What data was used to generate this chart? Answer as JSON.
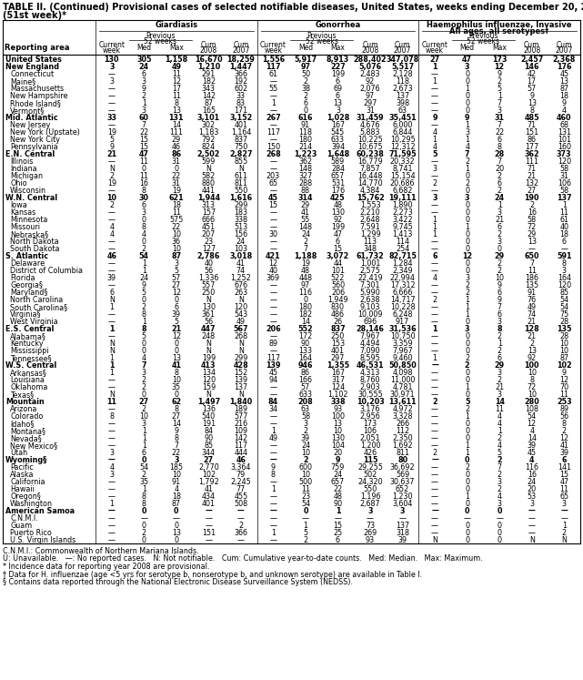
{
  "title_line1": "TABLE II. (Continued) Provisional cases of selected notifiable diseases, United States, weeks ending December 20, 2008, and December 22, 2007",
  "title_line2": "(51st week)*",
  "rows": [
    [
      "United States",
      "130",
      "305",
      "1,158",
      "16,670",
      "18,259",
      "1,556",
      "5,917",
      "8,913",
      "288,402",
      "347,078",
      "27",
      "47",
      "173",
      "2,457",
      "2,368"
    ],
    [
      "New England",
      "3",
      "24",
      "49",
      "1,210",
      "1,447",
      "117",
      "97",
      "227",
      "5,076",
      "5,517",
      "1",
      "3",
      "12",
      "146",
      "176"
    ],
    [
      "Connecticut",
      "—",
      "6",
      "11",
      "291",
      "366",
      "61",
      "50",
      "199",
      "2,483",
      "2,128",
      "—",
      "0",
      "9",
      "42",
      "45"
    ],
    [
      "Maine§",
      "3",
      "3",
      "12",
      "182",
      "192",
      "—",
      "2",
      "6",
      "92",
      "118",
      "1",
      "0",
      "2",
      "17",
      "13"
    ],
    [
      "Massachusetts",
      "—",
      "9",
      "17",
      "343",
      "602",
      "55",
      "38",
      "69",
      "2,076",
      "2,673",
      "—",
      "1",
      "5",
      "57",
      "87"
    ],
    [
      "New Hampshire",
      "—",
      "2",
      "11",
      "142",
      "33",
      "—",
      "2",
      "6",
      "97",
      "137",
      "—",
      "0",
      "1",
      "9",
      "18"
    ],
    [
      "Rhode Island§",
      "—",
      "1",
      "8",
      "87",
      "83",
      "1",
      "6",
      "13",
      "297",
      "398",
      "—",
      "0",
      "7",
      "13",
      "9"
    ],
    [
      "Vermont§",
      "—",
      "3",
      "13",
      "165",
      "171",
      "—",
      "0",
      "3",
      "31",
      "63",
      "—",
      "0",
      "3",
      "8",
      "4"
    ],
    [
      "Mid. Atlantic",
      "33",
      "60",
      "131",
      "3,101",
      "3,152",
      "267",
      "616",
      "1,028",
      "31,459",
      "35,451",
      "9",
      "9",
      "31",
      "485",
      "460"
    ],
    [
      "New Jersey",
      "—",
      "7",
      "14",
      "302",
      "401",
      "—",
      "91",
      "167",
      "4,676",
      "6,000",
      "—",
      "1",
      "7",
      "71",
      "68"
    ],
    [
      "New York (Upstate)",
      "19",
      "22",
      "111",
      "1,183",
      "1,164",
      "117",
      "118",
      "545",
      "5,883",
      "6,844",
      "4",
      "3",
      "22",
      "151",
      "131"
    ],
    [
      "New York City",
      "5",
      "15",
      "29",
      "792",
      "837",
      "—",
      "180",
      "633",
      "10,225",
      "10,295",
      "1",
      "1",
      "6",
      "86",
      "101"
    ],
    [
      "Pennsylvania",
      "9",
      "15",
      "46",
      "824",
      "750",
      "150",
      "214",
      "394",
      "10,675",
      "12,312",
      "4",
      "4",
      "8",
      "177",
      "160"
    ],
    [
      "E.N. Central",
      "21",
      "47",
      "86",
      "2,502",
      "2,827",
      "268",
      "1,223",
      "1,648",
      "60,238",
      "71,595",
      "5",
      "7",
      "28",
      "362",
      "373"
    ],
    [
      "Illinois",
      "—",
      "11",
      "31",
      "599",
      "855",
      "—",
      "362",
      "589",
      "16,779",
      "20,332",
      "—",
      "2",
      "7",
      "111",
      "120"
    ],
    [
      "Indiana",
      "N",
      "0",
      "0",
      "N",
      "N",
      "—",
      "148",
      "284",
      "7,857",
      "8,741",
      "3",
      "1",
      "20",
      "71",
      "58"
    ],
    [
      "Michigan",
      "2",
      "11",
      "22",
      "582",
      "611",
      "203",
      "327",
      "657",
      "16,448",
      "15,154",
      "—",
      "0",
      "2",
      "21",
      "31"
    ],
    [
      "Ohio",
      "19",
      "16",
      "31",
      "880",
      "811",
      "65",
      "288",
      "531",
      "14,770",
      "20,686",
      "2",
      "2",
      "6",
      "132",
      "106"
    ],
    [
      "Wisconsin",
      "—",
      "8",
      "19",
      "441",
      "550",
      "—",
      "88",
      "176",
      "4,384",
      "6,682",
      "—",
      "0",
      "2",
      "27",
      "58"
    ],
    [
      "W.N. Central",
      "10",
      "30",
      "621",
      "1,944",
      "1,616",
      "45",
      "314",
      "425",
      "15,762",
      "19,111",
      "3",
      "3",
      "24",
      "190",
      "137"
    ],
    [
      "Iowa",
      "2",
      "6",
      "18",
      "313",
      "299",
      "15",
      "29",
      "48",
      "1,553",
      "1,890",
      "—",
      "0",
      "1",
      "2",
      "1"
    ],
    [
      "Kansas",
      "—",
      "3",
      "11",
      "157",
      "183",
      "—",
      "41",
      "130",
      "2,210",
      "2,273",
      "—",
      "0",
      "3",
      "16",
      "11"
    ],
    [
      "Minnesota",
      "—",
      "0",
      "575",
      "666",
      "338",
      "—",
      "55",
      "92",
      "2,648",
      "3,422",
      "1",
      "0",
      "21",
      "58",
      "61"
    ],
    [
      "Missouri",
      "4",
      "8",
      "22",
      "451",
      "513",
      "—",
      "148",
      "199",
      "7,591",
      "9,745",
      "1",
      "1",
      "6",
      "72",
      "40"
    ],
    [
      "Nebraska§",
      "4",
      "4",
      "10",
      "207",
      "156",
      "30",
      "24",
      "47",
      "1,299",
      "1,413",
      "1",
      "0",
      "2",
      "29",
      "18"
    ],
    [
      "North Dakota",
      "—",
      "0",
      "36",
      "23",
      "24",
      "—",
      "2",
      "6",
      "113",
      "114",
      "—",
      "0",
      "3",
      "13",
      "6"
    ],
    [
      "South Dakota",
      "—",
      "2",
      "10",
      "127",
      "103",
      "—",
      "7",
      "15",
      "348",
      "254",
      "—",
      "0",
      "0",
      "—",
      "—"
    ],
    [
      "S. Atlantic",
      "46",
      "54",
      "87",
      "2,786",
      "3,018",
      "421",
      "1,188",
      "3,072",
      "61,732",
      "82,715",
      "6",
      "12",
      "29",
      "650",
      "591"
    ],
    [
      "Delaware",
      "—",
      "1",
      "3",
      "40",
      "41",
      "12",
      "19",
      "44",
      "1,001",
      "1,284",
      "—",
      "0",
      "2",
      "7",
      "8"
    ],
    [
      "District of Columbia",
      "—",
      "1",
      "5",
      "56",
      "74",
      "40",
      "48",
      "101",
      "2,575",
      "2,349",
      "—",
      "0",
      "2",
      "11",
      "3"
    ],
    [
      "Florida",
      "39",
      "24",
      "57",
      "1,336",
      "1,252",
      "369",
      "448",
      "522",
      "22,419",
      "22,994",
      "4",
      "3",
      "10",
      "186",
      "164"
    ],
    [
      "Georgia§",
      "—",
      "9",
      "27",
      "557",
      "676",
      "—",
      "97",
      "560",
      "7,301",
      "17,312",
      "—",
      "2",
      "9",
      "135",
      "120"
    ],
    [
      "Maryland§",
      "6",
      "5",
      "12",
      "250",
      "263",
      "—",
      "116",
      "206",
      "5,990",
      "6,666",
      "—",
      "2",
      "6",
      "91",
      "85"
    ],
    [
      "North Carolina",
      "N",
      "0",
      "0",
      "N",
      "N",
      "—",
      "0",
      "1,949",
      "2,638",
      "14,717",
      "2",
      "1",
      "9",
      "76",
      "54"
    ],
    [
      "South Carolina§",
      "1",
      "2",
      "6",
      "130",
      "120",
      "—",
      "180",
      "830",
      "9,103",
      "10,228",
      "—",
      "1",
      "7",
      "49",
      "54"
    ],
    [
      "Virginia§",
      "—",
      "8",
      "39",
      "361",
      "543",
      "—",
      "182",
      "486",
      "10,009",
      "6,248",
      "—",
      "1",
      "6",
      "74",
      "75"
    ],
    [
      "West Virginia",
      "—",
      "1",
      "5",
      "56",
      "49",
      "—",
      "14",
      "26",
      "696",
      "917",
      "—",
      "0",
      "3",
      "21",
      "28"
    ],
    [
      "E.S. Central",
      "1",
      "8",
      "21",
      "447",
      "567",
      "206",
      "552",
      "837",
      "28,146",
      "31,536",
      "1",
      "3",
      "8",
      "128",
      "135"
    ],
    [
      "Alabama§",
      "—",
      "5",
      "12",
      "248",
      "268",
      "—",
      "172",
      "250",
      "7,967",
      "10,750",
      "—",
      "0",
      "2",
      "21",
      "28"
    ],
    [
      "Kentucky",
      "N",
      "0",
      "0",
      "N",
      "N",
      "89",
      "90",
      "153",
      "4,494",
      "3,359",
      "—",
      "0",
      "1",
      "2",
      "10"
    ],
    [
      "Mississippi",
      "N",
      "0",
      "0",
      "N",
      "N",
      "—",
      "133",
      "401",
      "7,090",
      "7,967",
      "—",
      "0",
      "2",
      "13",
      "10"
    ],
    [
      "Tennessee§",
      "1",
      "4",
      "13",
      "199",
      "299",
      "117",
      "164",
      "297",
      "8,595",
      "9,460",
      "1",
      "2",
      "6",
      "92",
      "87"
    ],
    [
      "W.S. Central",
      "1",
      "7",
      "41",
      "413",
      "428",
      "139",
      "946",
      "1,355",
      "46,531",
      "50,850",
      "—",
      "2",
      "29",
      "100",
      "102"
    ],
    [
      "Arkansas§",
      "1",
      "3",
      "8",
      "134",
      "152",
      "45",
      "86",
      "167",
      "4,313",
      "4,098",
      "—",
      "0",
      "3",
      "10",
      "9"
    ],
    [
      "Louisiana",
      "—",
      "2",
      "10",
      "120",
      "139",
      "94",
      "166",
      "317",
      "8,760",
      "11,000",
      "—",
      "0",
      "2",
      "8",
      "12"
    ],
    [
      "Oklahoma",
      "—",
      "2",
      "35",
      "159",
      "137",
      "—",
      "57",
      "124",
      "2,903",
      "4,781",
      "—",
      "1",
      "21",
      "72",
      "70"
    ],
    [
      "Texas§",
      "N",
      "0",
      "0",
      "N",
      "N",
      "—",
      "633",
      "1,102",
      "30,555",
      "30,971",
      "—",
      "0",
      "3",
      "10",
      "11"
    ],
    [
      "Mountain",
      "11",
      "27",
      "62",
      "1,497",
      "1,840",
      "84",
      "208",
      "338",
      "10,203",
      "13,611",
      "2",
      "5",
      "14",
      "280",
      "253"
    ],
    [
      "Arizona",
      "—",
      "2",
      "8",
      "136",
      "189",
      "34",
      "63",
      "93",
      "3,176",
      "4,972",
      "—",
      "2",
      "11",
      "108",
      "89"
    ],
    [
      "Colorado",
      "8",
      "10",
      "27",
      "540",
      "577",
      "—",
      "58",
      "100",
      "2,956",
      "3,328",
      "—",
      "1",
      "4",
      "54",
      "56"
    ],
    [
      "Idaho§",
      "—",
      "3",
      "14",
      "191",
      "216",
      "—",
      "3",
      "13",
      "173",
      "266",
      "—",
      "0",
      "4",
      "12",
      "8"
    ],
    [
      "Montana§",
      "—",
      "1",
      "9",
      "84",
      "109",
      "1",
      "2",
      "10",
      "106",
      "112",
      "—",
      "0",
      "1",
      "4",
      "2"
    ],
    [
      "Nevada§",
      "—",
      "1",
      "8",
      "90",
      "142",
      "49",
      "39",
      "130",
      "2,051",
      "2,350",
      "—",
      "0",
      "2",
      "14",
      "12"
    ],
    [
      "New Mexico§",
      "—",
      "1",
      "7",
      "85",
      "117",
      "—",
      "24",
      "104",
      "1,200",
      "1,692",
      "—",
      "1",
      "4",
      "39",
      "41"
    ],
    [
      "Utah",
      "3",
      "6",
      "22",
      "344",
      "444",
      "—",
      "10",
      "20",
      "426",
      "811",
      "2",
      "1",
      "5",
      "45",
      "39"
    ],
    [
      "Wyoming§",
      "—",
      "0",
      "3",
      "27",
      "46",
      "—",
      "2",
      "9",
      "115",
      "80",
      "—",
      "0",
      "2",
      "4",
      "6"
    ],
    [
      "Pacific",
      "4",
      "54",
      "185",
      "2,770",
      "3,364",
      "9",
      "600",
      "759",
      "29,255",
      "36,692",
      "—",
      "2",
      "7",
      "116",
      "141"
    ],
    [
      "Alaska",
      "3",
      "2",
      "10",
      "102",
      "79",
      "8",
      "10",
      "24",
      "502",
      "569",
      "—",
      "0",
      "2",
      "16",
      "15"
    ],
    [
      "California",
      "—",
      "35",
      "91",
      "1,792",
      "2,245",
      "—",
      "500",
      "657",
      "24,320",
      "30,637",
      "—",
      "0",
      "3",
      "24",
      "47"
    ],
    [
      "Hawaii",
      "—",
      "1",
      "4",
      "41",
      "77",
      "1",
      "11",
      "22",
      "550",
      "652",
      "—",
      "0",
      "2",
      "20",
      "11"
    ],
    [
      "Oregon§",
      "—",
      "8",
      "18",
      "434",
      "455",
      "—",
      "23",
      "48",
      "1,196",
      "1,230",
      "—",
      "1",
      "4",
      "53",
      "65"
    ],
    [
      "Washington",
      "1",
      "8",
      "87",
      "401",
      "508",
      "—",
      "54",
      "90",
      "2,687",
      "3,604",
      "—",
      "0",
      "3",
      "3",
      "3"
    ],
    [
      "American Samoa",
      "—",
      "0",
      "0",
      "—",
      "—",
      "—",
      "0",
      "1",
      "3",
      "3",
      "—",
      "0",
      "0",
      "—",
      "—"
    ],
    [
      "C.N.M.I.",
      "—",
      "—",
      "—",
      "—",
      "—",
      "—",
      "—",
      "—",
      "—",
      "—",
      "—",
      "—",
      "—",
      "—",
      "—"
    ],
    [
      "Guam",
      "—",
      "0",
      "0",
      "—",
      "2",
      "—",
      "1",
      "15",
      "73",
      "137",
      "—",
      "0",
      "0",
      "—",
      "1"
    ],
    [
      "Puerto Rico",
      "—",
      "2",
      "13",
      "151",
      "366",
      "1",
      "5",
      "25",
      "269",
      "318",
      "—",
      "0",
      "0",
      "—",
      "2"
    ],
    [
      "U.S. Virgin Islands",
      "—",
      "0",
      "0",
      "—",
      "—",
      "—",
      "2",
      "6",
      "93",
      "39",
      "N",
      "0",
      "0",
      "N",
      "N"
    ]
  ],
  "bold_rows": [
    0,
    1,
    8,
    13,
    19,
    27,
    37,
    42,
    47,
    55,
    62
  ],
  "footnotes": [
    "C.N.M.I.: Commonwealth of Northern Mariana Islands.",
    "U: Unavailable.   —: No reported cases.   N: Not notifiable.   Cum: Cumulative year-to-date counts.   Med: Median.   Max: Maximum.",
    "* Incidence data for reporting year 2008 are provisional.",
    "† Data for H. influenzae (age <5 yrs for serotype b, nonserotype b, and unknown serotype) are available in Table I.",
    "§ Contains data reported through the National Electronic Disease Surveillance System (NEDSS)."
  ],
  "font_size_title": 7.0,
  "font_size_header": 6.0,
  "font_size_data": 5.8,
  "font_size_footnote": 5.8
}
